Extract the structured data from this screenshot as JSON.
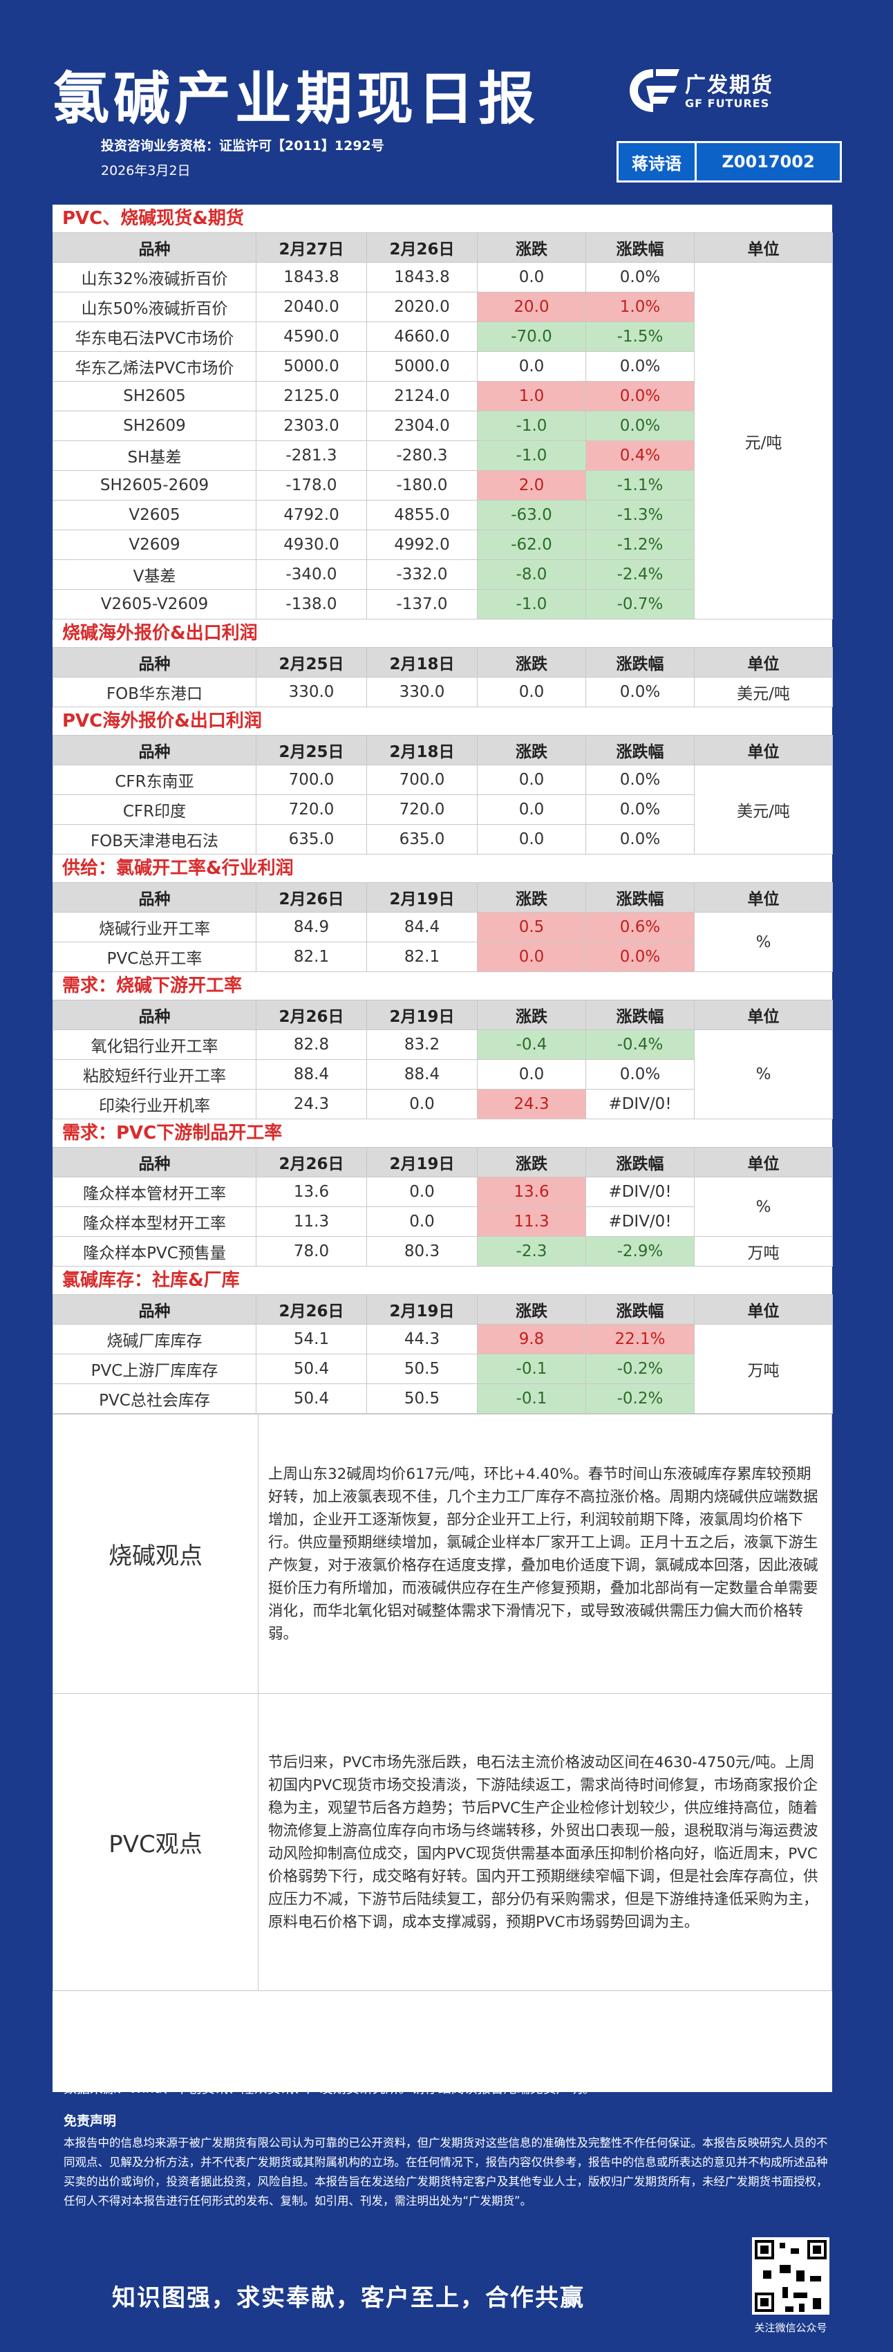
{
  "header": {
    "title": "氯碱产业期现日报",
    "license": "投资咨询业务资格：证监许可【2011】1292号",
    "date": "2026年3月2日",
    "logo_cn": "广发期货",
    "logo_en": "GF FUTURES",
    "analyst_name": "蒋诗语",
    "analyst_code": "Z0017002"
  },
  "colors": {
    "accent_red": "#d92b2b",
    "rise_bg": "#f4b8b8",
    "fall_bg": "#c5e6c5",
    "brand_blue": "#1b3a8c"
  },
  "sections": [
    {
      "title": "PVC、烧碱现货&期货",
      "headers": [
        "品种",
        "2月27日",
        "2月26日",
        "涨跌",
        "涨跌幅",
        "单位"
      ],
      "unit": "元/吨",
      "rows": [
        {
          "name": "山东32%液碱折百价",
          "v1": "1843.8",
          "v2": "1843.8",
          "chg": "0.0",
          "pct": "0.0%",
          "cd": "0",
          "pd": "0"
        },
        {
          "name": "山东50%液碱折百价",
          "v1": "2040.0",
          "v2": "2020.0",
          "chg": "20.0",
          "pct": "1.0%",
          "cd": "1",
          "pd": "1"
        },
        {
          "name": "华东电石法PVC市场价",
          "v1": "4590.0",
          "v2": "4660.0",
          "chg": "-70.0",
          "pct": "-1.5%",
          "cd": "-1",
          "pd": "-1"
        },
        {
          "name": "华东乙烯法PVC市场价",
          "v1": "5000.0",
          "v2": "5000.0",
          "chg": "0.0",
          "pct": "0.0%",
          "cd": "0",
          "pd": "0"
        },
        {
          "name": "SH2605",
          "v1": "2125.0",
          "v2": "2124.0",
          "chg": "1.0",
          "pct": "0.0%",
          "cd": "1",
          "pd": "1"
        },
        {
          "name": "SH2609",
          "v1": "2303.0",
          "v2": "2304.0",
          "chg": "-1.0",
          "pct": "0.0%",
          "cd": "-1",
          "pd": "-1"
        },
        {
          "name": "SH基差",
          "v1": "-281.3",
          "v2": "-280.3",
          "chg": "-1.0",
          "pct": "0.4%",
          "cd": "-1",
          "pd": "1"
        },
        {
          "name": "SH2605-2609",
          "v1": "-178.0",
          "v2": "-180.0",
          "chg": "2.0",
          "pct": "-1.1%",
          "cd": "1",
          "pd": "-1"
        },
        {
          "name": "V2605",
          "v1": "4792.0",
          "v2": "4855.0",
          "chg": "-63.0",
          "pct": "-1.3%",
          "cd": "-1",
          "pd": "-1"
        },
        {
          "name": "V2609",
          "v1": "4930.0",
          "v2": "4992.0",
          "chg": "-62.0",
          "pct": "-1.2%",
          "cd": "-1",
          "pd": "-1"
        },
        {
          "name": "V基差",
          "v1": "-340.0",
          "v2": "-332.0",
          "chg": "-8.0",
          "pct": "-2.4%",
          "cd": "-1",
          "pd": "-1"
        },
        {
          "name": "V2605-V2609",
          "v1": "-138.0",
          "v2": "-137.0",
          "chg": "-1.0",
          "pct": "-0.7%",
          "cd": "-1",
          "pd": "-1"
        }
      ]
    },
    {
      "title": "烧碱海外报价&出口利润",
      "headers": [
        "品种",
        "2月25日",
        "2月18日",
        "涨跌",
        "涨跌幅",
        "单位"
      ],
      "unit": "美元/吨",
      "rows": [
        {
          "name": "FOB华东港口",
          "v1": "330.0",
          "v2": "330.0",
          "chg": "0.0",
          "pct": "0.0%",
          "cd": "0",
          "pd": "0"
        }
      ]
    },
    {
      "title": "PVC海外报价&出口利润",
      "headers": [
        "品种",
        "2月25日",
        "2月18日",
        "涨跌",
        "涨跌幅",
        "单位"
      ],
      "unit": "美元/吨",
      "rows": [
        {
          "name": "CFR东南亚",
          "v1": "700.0",
          "v2": "700.0",
          "chg": "0.0",
          "pct": "0.0%",
          "cd": "0",
          "pd": "0"
        },
        {
          "name": "CFR印度",
          "v1": "720.0",
          "v2": "720.0",
          "chg": "0.0",
          "pct": "0.0%",
          "cd": "0",
          "pd": "0"
        },
        {
          "name": "FOB天津港电石法",
          "v1": "635.0",
          "v2": "635.0",
          "chg": "0.0",
          "pct": "0.0%",
          "cd": "0",
          "pd": "0"
        }
      ]
    },
    {
      "title": "供给：氯碱开工率&行业利润",
      "headers": [
        "品种",
        "2月26日",
        "2月19日",
        "涨跌",
        "涨跌幅",
        "单位"
      ],
      "unit": "%",
      "rows": [
        {
          "name": "烧碱行业开工率",
          "v1": "84.9",
          "v2": "84.4",
          "chg": "0.5",
          "pct": "0.6%",
          "cd": "1",
          "pd": "1"
        },
        {
          "name": "PVC总开工率",
          "v1": "82.1",
          "v2": "82.1",
          "chg": "0.0",
          "pct": "0.0%",
          "cd": "1",
          "pd": "1"
        }
      ]
    },
    {
      "title": "需求：烧碱下游开工率",
      "headers": [
        "品种",
        "2月26日",
        "2月19日",
        "涨跌",
        "涨跌幅",
        "单位"
      ],
      "unit": "%",
      "rows": [
        {
          "name": "氧化铝行业开工率",
          "v1": "82.8",
          "v2": "83.2",
          "chg": "-0.4",
          "pct": "-0.4%",
          "cd": "-1",
          "pd": "-1"
        },
        {
          "name": "粘胶短纤行业开工率",
          "v1": "88.4",
          "v2": "88.4",
          "chg": "0.0",
          "pct": "0.0%",
          "cd": "0",
          "pd": "0"
        },
        {
          "name": "印染行业开机率",
          "v1": "24.3",
          "v2": "0.0",
          "chg": "24.3",
          "pct": "#DIV/0!",
          "cd": "1",
          "pd": "0"
        }
      ]
    },
    {
      "title": "需求：PVC下游制品开工率",
      "headers": [
        "品种",
        "2月26日",
        "2月19日",
        "涨跌",
        "涨跌幅",
        "单位"
      ],
      "unit": "%",
      "unit2": "万吨",
      "rows": [
        {
          "name": "隆众样本管材开工率",
          "v1": "13.6",
          "v2": "0.0",
          "chg": "13.6",
          "pct": "#DIV/0!",
          "cd": "1",
          "pd": "0"
        },
        {
          "name": "隆众样本型材开工率",
          "v1": "11.3",
          "v2": "0.0",
          "chg": "11.3",
          "pct": "#DIV/0!",
          "cd": "1",
          "pd": "0"
        },
        {
          "name": "隆众样本PVC预售量",
          "v1": "78.0",
          "v2": "80.3",
          "chg": "-2.3",
          "pct": "-2.9%",
          "cd": "-1",
          "pd": "-1"
        }
      ]
    },
    {
      "title": "氯碱库存：社库&厂库",
      "headers": [
        "品种",
        "2月26日",
        "2月19日",
        "涨跌",
        "涨跌幅",
        "单位"
      ],
      "unit": "万吨",
      "rows": [
        {
          "name": "烧碱厂库库存",
          "v1": "54.1",
          "v2": "44.3",
          "chg": "9.8",
          "pct": "22.1%",
          "cd": "1",
          "pd": "1"
        },
        {
          "name": "PVC上游厂库库存",
          "v1": "50.4",
          "v2": "50.5",
          "chg": "-0.1",
          "pct": "-0.2%",
          "cd": "-1",
          "pd": "-1"
        },
        {
          "name": "PVC总社会库存",
          "v1": "50.4",
          "v2": "50.5",
          "chg": "-0.1",
          "pct": "-0.2%",
          "cd": "-1",
          "pd": "-1"
        }
      ]
    }
  ],
  "views": [
    {
      "label": "烧碱观点",
      "text": "上周山东32碱周均价617元/吨，环比+4.40%。春节时间山东液碱库存累库较预期好转，加上液氯表现不佳，几个主力工厂库存不高拉涨价格。周期内烧碱供应端数据增加，企业开工逐渐恢复，部分企业开工上行，利润较前期下降，液氯周均价格下行。供应量预期继续增加，氯碱企业样本厂家开工上调。正月十五之后，液氯下游生产恢复，对于液氯价格存在适度支撑，叠加电价适度下调，氯碱成本回落，因此液碱挺价压力有所增加，而液碱供应存在生产修复预期，叠加北部尚有一定数量合单需要消化，而华北氧化铝对碱整体需求下滑情况下，或导致液碱供需压力偏大而价格转弱。"
    },
    {
      "label": "PVC观点",
      "text": "节后归来，PVC市场先涨后跌，电石法主流价格波动区间在4630-4750元/吨。上周初国内PVC现货市场交投清淡，下游陆续返工，需求尚待时间修复，市场商家报价企稳为主，观望节后各方趋势；节后PVC生产企业检修计划较少，供应维持高位，随着物流修复上游高位库存向市场与终端转移，外贸出口表现一般，退税取消与海运费波动风险抑制高位成交，国内PVC现货供需基本面承压抑制价格向好，临近周末，PVC价格弱势下行，成交略有好转。国内开工预期继续窄幅下调，但是社会库存高位，供应压力不减，下游节后陆续复工，部分仍有采购需求，但是下游维持逢低采购为主，原料电石价格下调，成本支撑减弱，预期PVC市场弱势回调为主。"
    }
  ],
  "footer": {
    "source": "数据来源：Wind、卓创资讯、隆众资讯、广发期货研究所。请仔细阅读报告尾端免责声明。",
    "disclaimer_title": "免责声明",
    "disclaimer": "本报告中的信息均来源于被广发期货有限公司认为可靠的已公开资料，但广发期货对这些信息的准确性及完整性不作任何保证。本报告反映研究人员的不同观点、见解及分析方法，并不代表广发期货或其附属机构的立场。在任何情况下，报告内容仅供参考，报告中的信息或所表达的意见并不构成所述品种买卖的出价或询价，投资者据此投资，风险自担。本报告旨在发送给广发期货特定客户及其他专业人士，版权归广发期货所有，未经广发期货书面授权，任何人不得对本报告进行任何形式的发布、复制。如引用、刊发，需注明出处为“广发期货”。",
    "slogan": "知识图强，求实奉献，客户至上，合作共赢",
    "qr_caption": "关注微信公众号"
  }
}
